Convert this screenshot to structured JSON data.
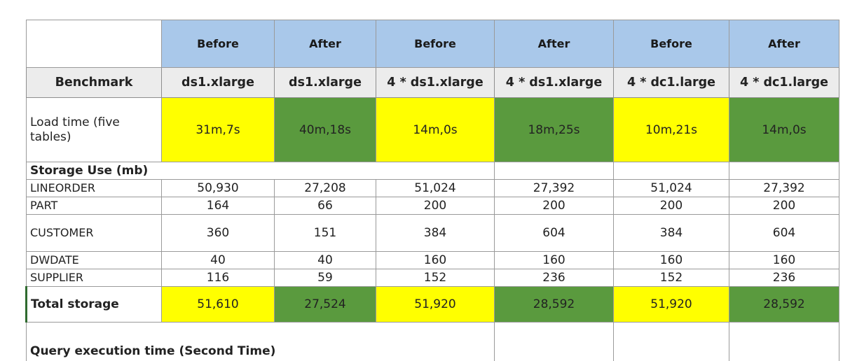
{
  "colors": {
    "header_blue": "#a9c8ea",
    "before_yellow": "#ffff00",
    "after_green": "#5a9a3e",
    "bench_gray": "#ececec"
  },
  "header": {
    "phases": [
      "Before",
      "After",
      "Before",
      "After",
      "Before",
      "After"
    ]
  },
  "benchmark_row": {
    "label": "Benchmark",
    "configs": [
      "ds1.xlarge",
      "ds1.xlarge",
      "4 * ds1.xlarge",
      "4 * ds1.xlarge",
      "4 * dc1.large",
      "4 * dc1.large"
    ]
  },
  "load_time": {
    "label": "Load time (five tables)",
    "values": [
      "31m,7s",
      "40m,18s",
      "14m,0s",
      "18m,25s",
      "10m,21s",
      "14m,0s"
    ]
  },
  "storage_section": {
    "label": "Storage Use (mb)"
  },
  "storage_rows": [
    {
      "label": "LINEORDER",
      "values": [
        "50,930",
        "27,208",
        "51,024",
        "27,392",
        "51,024",
        "27,392"
      ]
    },
    {
      "label": "PART",
      "values": [
        "164",
        "66",
        "200",
        "200",
        "200",
        "200"
      ]
    },
    {
      "label": "CUSTOMER",
      "values": [
        "360",
        "151",
        "384",
        "604",
        "384",
        "604"
      ]
    },
    {
      "label": "DWDATE",
      "values": [
        "40",
        "40",
        "160",
        "160",
        "160",
        "160"
      ]
    },
    {
      "label": "SUPPLIER",
      "values": [
        "116",
        "59",
        "152",
        "236",
        "152",
        "236"
      ]
    }
  ],
  "total_storage": {
    "label": "Total storage",
    "values": [
      "51,610",
      "27,524",
      "51,920",
      "28,592",
      "51,920",
      "28,592"
    ]
  },
  "query_section": {
    "label": "Query execution time (Second Time)"
  }
}
